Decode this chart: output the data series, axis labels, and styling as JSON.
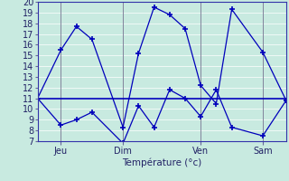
{
  "xlabel": "Température (°c)",
  "xlim": [
    0,
    32
  ],
  "ylim": [
    7,
    20
  ],
  "yticks": [
    7,
    8,
    9,
    10,
    11,
    12,
    13,
    14,
    15,
    16,
    17,
    18,
    19,
    20
  ],
  "xtick_positions": [
    3,
    11,
    21,
    29
  ],
  "xtick_labels": [
    "Jeu",
    "Dim",
    "Ven",
    "Sam"
  ],
  "bg_color": "#c8eae0",
  "line_color": "#0000bb",
  "grid_color": "#ffffff",
  "series_high": {
    "x": [
      0,
      3,
      5,
      7,
      11,
      13,
      15,
      17,
      19,
      21,
      23,
      25,
      29,
      32
    ],
    "y": [
      11,
      15.5,
      17.7,
      16.5,
      8.3,
      15.2,
      19.5,
      18.8,
      17.5,
      12.2,
      10.5,
      19.3,
      15.3,
      10.8
    ]
  },
  "series_low": {
    "x": [
      0,
      3,
      5,
      7,
      11,
      13,
      15,
      17,
      19,
      21,
      23,
      25,
      29,
      32
    ],
    "y": [
      11,
      8.5,
      9,
      9.7,
      6.8,
      10.3,
      8.3,
      11.8,
      11.0,
      9.3,
      11.8,
      8.3,
      7.5,
      10.8
    ]
  },
  "series_mean": {
    "x": [
      0,
      32
    ],
    "y": [
      11,
      11
    ]
  }
}
